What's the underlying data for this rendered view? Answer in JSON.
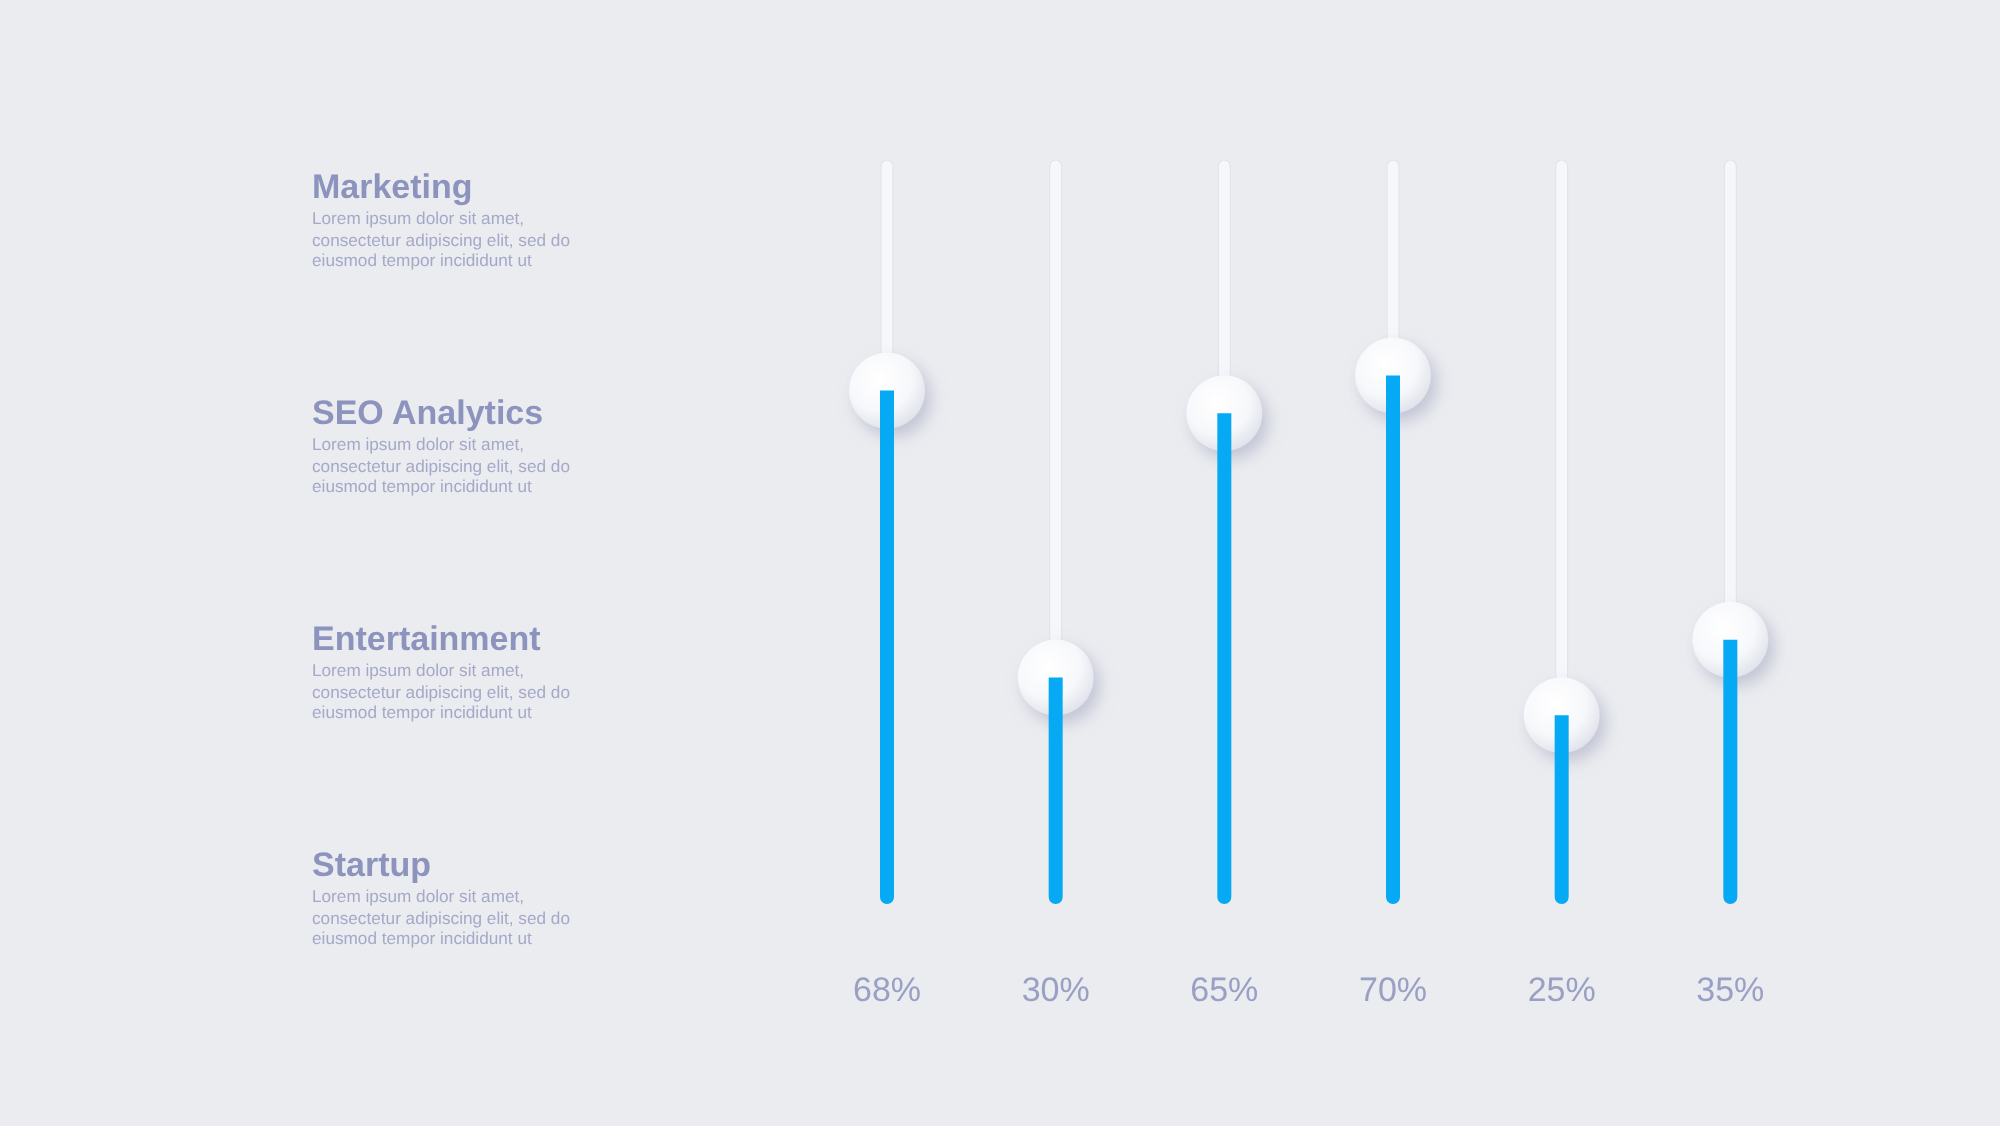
{
  "chart_data": {
    "type": "bar",
    "categories": [
      null,
      null,
      null,
      null,
      null,
      null
    ],
    "values": [
      68,
      30,
      65,
      70,
      25,
      35
    ],
    "color": "#06a9f4",
    "value_labels": [
      "68%",
      "30%",
      "65%",
      "70%",
      "25%",
      "35%"
    ],
    "tick_labels": false,
    "annotations": [
      "Marketing",
      "Lorem ipsum dolor sit amet, consectetur adipiscing elit, sed do eiusmod tempor incididunt ut",
      "SEO Analytics",
      "Lorem ipsum dolor sit amet, consectetur adipiscing elit, sed do eiusmod tempor incididunt ut",
      "Entertainment",
      "Lorem ipsum dolor sit amet, consectetur adipiscing elit, sed do eiusmod tempor incididunt ut",
      "Startup",
      "Lorem ipsum dolor sit amet, consectetur adipiscing elit, sed do eiusmod tempor incididunt ut"
    ]
  }
}
